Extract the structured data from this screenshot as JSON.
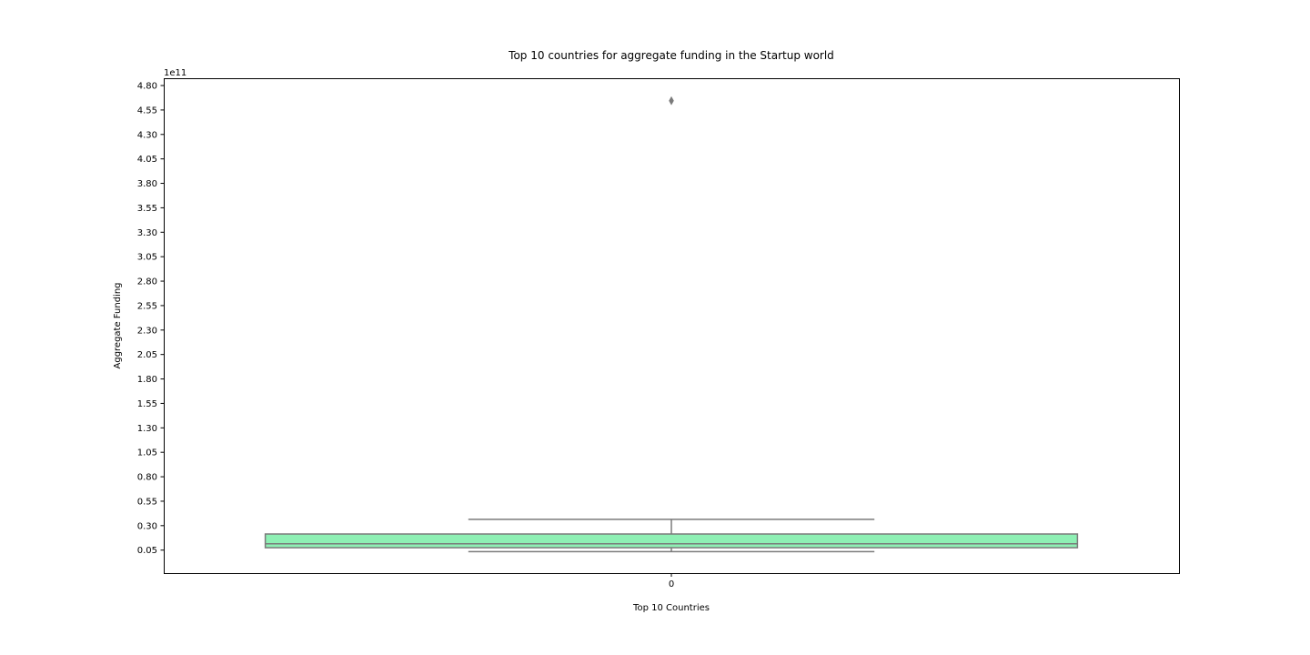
{
  "chart_data": {
    "type": "box",
    "title": "Top 10 countries for aggregate funding in the Startup world",
    "xlabel": "Top 10 Countries",
    "ylabel": "Aggregate Funding",
    "y_offset_label": "1e11",
    "categories": [
      "0"
    ],
    "yticks": [
      "0.05",
      "0.30",
      "0.55",
      "0.80",
      "1.05",
      "1.30",
      "1.55",
      "1.80",
      "2.05",
      "2.30",
      "2.55",
      "2.80",
      "3.05",
      "3.30",
      "3.55",
      "3.80",
      "4.05",
      "4.30",
      "4.55",
      "4.80"
    ],
    "y_scale": 100000000000,
    "ylim": [
      -0.19,
      4.87
    ],
    "boxes": [
      {
        "category": "0",
        "whisker_low": 0.03,
        "q1": 0.07,
        "median": 0.11,
        "q3": 0.21,
        "whisker_high": 0.36,
        "outliers": [
          4.64
        ]
      }
    ],
    "colors": {
      "box_fill": "#8ef0b4",
      "line": "#7a7a7a"
    },
    "grid": false
  }
}
